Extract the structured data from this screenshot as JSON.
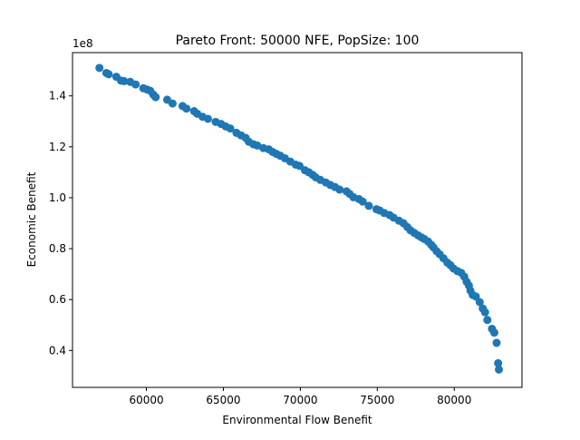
{
  "chart_data": {
    "type": "scatter",
    "title": "Pareto Front: 50000 NFE, PopSize: 100",
    "xlabel": "Environmental Flow Benefit",
    "ylabel": "Economic Benefit",
    "y_scale_label": "1e8",
    "xlim": [
      55200,
      84400
    ],
    "ylim": [
      0.255,
      1.57
    ],
    "x_ticks": [
      60000,
      65000,
      70000,
      75000,
      80000
    ],
    "x_tick_labels": [
      "60000",
      "65000",
      "70000",
      "75000",
      "80000"
    ],
    "y_ticks": [
      0.4,
      0.6,
      0.8,
      1.0,
      1.2,
      1.4
    ],
    "y_tick_labels": [
      "0.4",
      "0.6",
      "0.8",
      "1.0",
      "1.2",
      "1.4"
    ],
    "grid": false,
    "legend": "none",
    "marker_color": "#1f77b4",
    "series": [
      {
        "x": [
          56950,
          57400,
          57550,
          58050,
          58350,
          58550,
          58950,
          59300,
          59800,
          60050,
          60250,
          60450,
          60600,
          61350,
          61700,
          62350,
          62600,
          63100,
          63300,
          63650,
          64000,
          64500,
          64850,
          65150,
          65450,
          65850,
          66150,
          66450,
          66650,
          66950,
          67200,
          67600,
          67950,
          68200,
          68450,
          68700,
          69000,
          69350,
          69700,
          69950,
          70300,
          70550,
          70800,
          71000,
          71300,
          71650,
          71950,
          72250,
          72550,
          73000,
          73200,
          73450,
          73800,
          74050,
          74450,
          74950,
          75150,
          75450,
          75800,
          76050,
          76400,
          76700,
          76950,
          77150,
          77400,
          77650,
          77850,
          78050,
          78300,
          78500,
          78650,
          78850,
          79050,
          79300,
          79550,
          79750,
          79950,
          80200,
          80450,
          80650,
          80800,
          80950,
          81050,
          81200,
          81400,
          81650,
          81850,
          82000,
          82150,
          82450,
          82600,
          82750,
          82850,
          82900
        ],
        "y": [
          1.51,
          1.49,
          1.485,
          1.475,
          1.46,
          1.458,
          1.455,
          1.445,
          1.43,
          1.425,
          1.42,
          1.405,
          1.395,
          1.385,
          1.37,
          1.36,
          1.35,
          1.34,
          1.33,
          1.318,
          1.31,
          1.298,
          1.29,
          1.28,
          1.272,
          1.255,
          1.245,
          1.235,
          1.22,
          1.21,
          1.205,
          1.195,
          1.19,
          1.18,
          1.172,
          1.165,
          1.155,
          1.142,
          1.13,
          1.125,
          1.108,
          1.1,
          1.09,
          1.08,
          1.07,
          1.06,
          1.05,
          1.042,
          1.032,
          1.025,
          1.015,
          1.002,
          0.995,
          0.985,
          0.968,
          0.955,
          0.95,
          0.94,
          0.932,
          0.922,
          0.91,
          0.9,
          0.885,
          0.872,
          0.862,
          0.852,
          0.845,
          0.838,
          0.828,
          0.815,
          0.805,
          0.79,
          0.778,
          0.762,
          0.745,
          0.735,
          0.722,
          0.712,
          0.705,
          0.69,
          0.67,
          0.655,
          0.635,
          0.618,
          0.612,
          0.59,
          0.565,
          0.55,
          0.52,
          0.485,
          0.47,
          0.43,
          0.35,
          0.325
        ]
      }
    ]
  }
}
